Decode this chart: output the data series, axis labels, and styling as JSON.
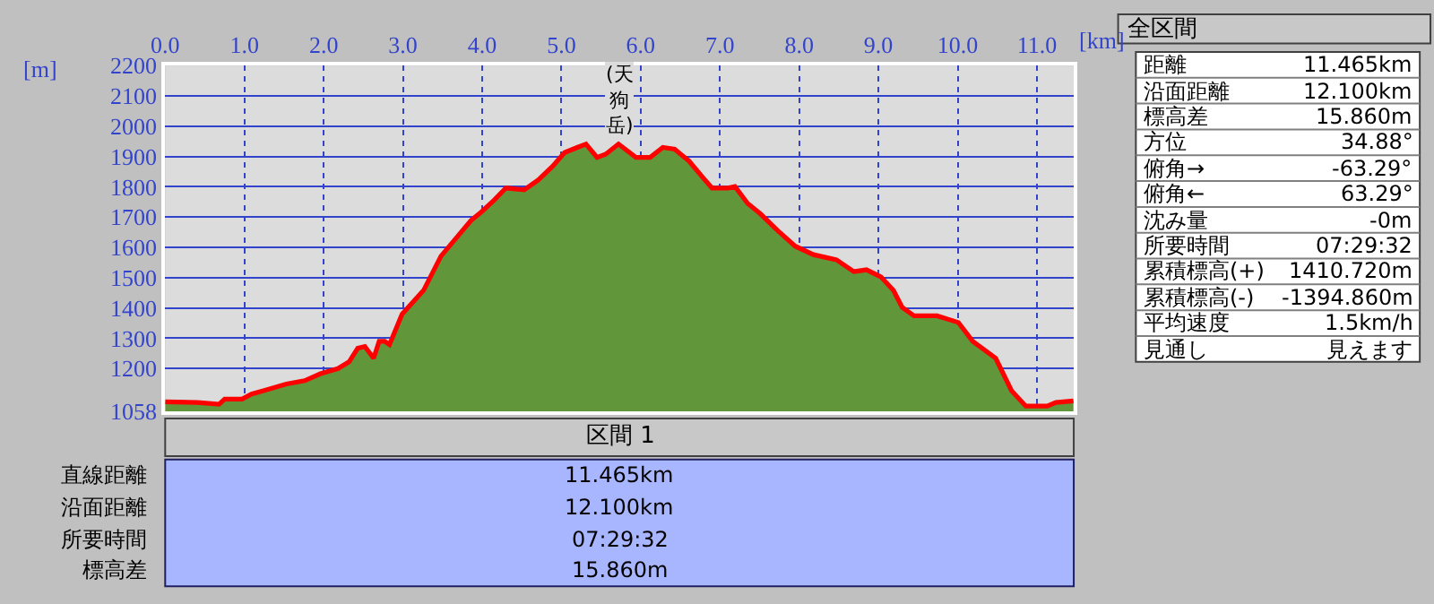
{
  "chart_data": [
    {
      "type": "area",
      "xlabel": "[km]",
      "ylabel": "[m]",
      "x": [
        0,
        0.41,
        0.68,
        0.75,
        0.97,
        1.09,
        1.24,
        1.53,
        1.76,
        1.96,
        2.18,
        2.32,
        2.43,
        2.52,
        2.63,
        2.7,
        2.77,
        2.83,
        2.99,
        3.26,
        3.48,
        3.66,
        3.86,
        3.99,
        4.15,
        4.3,
        4.53,
        4.71,
        4.89,
        5.04,
        5.2,
        5.31,
        5.45,
        5.56,
        5.72,
        5.94,
        6.12,
        6.28,
        6.43,
        6.61,
        6.79,
        6.9,
        7.1,
        7.19,
        7.35,
        7.51,
        7.73,
        7.95,
        8.18,
        8.47,
        8.69,
        8.85,
        9.03,
        9.19,
        9.3,
        9.45,
        9.74,
        10.01,
        10.19,
        10.48,
        10.68,
        10.86,
        11.13,
        11.24,
        11.46
      ],
      "series": [
        {
          "type": "area",
          "color": "#62963a",
          "values": [
            1090,
            1088,
            1082,
            1099,
            1099,
            1116,
            1127,
            1149,
            1160,
            1183,
            1200,
            1222,
            1267,
            1273,
            1234,
            1290,
            1290,
            1279,
            1380,
            1458,
            1571,
            1627,
            1689,
            1717,
            1756,
            1796,
            1790,
            1823,
            1868,
            1913,
            1930,
            1941,
            1897,
            1908,
            1941,
            1897,
            1897,
            1930,
            1924,
            1885,
            1829,
            1796,
            1796,
            1801,
            1745,
            1711,
            1655,
            1604,
            1576,
            1559,
            1520,
            1526,
            1503,
            1458,
            1402,
            1374,
            1374,
            1352,
            1290,
            1234,
            1127,
            1076,
            1076,
            1088,
            1093
          ]
        },
        {
          "type": "line",
          "color": "#ff0000",
          "values": [
            1090,
            1088,
            1082,
            1099,
            1099,
            1116,
            1127,
            1149,
            1160,
            1183,
            1200,
            1222,
            1267,
            1273,
            1234,
            1290,
            1290,
            1279,
            1380,
            1458,
            1571,
            1627,
            1689,
            1717,
            1756,
            1796,
            1790,
            1823,
            1868,
            1913,
            1930,
            1941,
            1897,
            1908,
            1941,
            1897,
            1897,
            1930,
            1924,
            1885,
            1829,
            1796,
            1796,
            1801,
            1745,
            1711,
            1655,
            1604,
            1576,
            1559,
            1520,
            1526,
            1503,
            1458,
            1402,
            1374,
            1374,
            1352,
            1290,
            1234,
            1127,
            1076,
            1076,
            1088,
            1093
          ]
        }
      ],
      "xlim": [
        0,
        11.465
      ],
      "ylim": [
        1058,
        2200
      ],
      "xticks": [
        {
          "value": 0,
          "label": "0.0"
        },
        {
          "value": 1,
          "label": "1.0"
        },
        {
          "value": 2,
          "label": "2.0"
        },
        {
          "value": 3,
          "label": "3.0"
        },
        {
          "value": 4,
          "label": "4.0"
        },
        {
          "value": 5,
          "label": "5.0"
        },
        {
          "value": 6,
          "label": "6.0"
        },
        {
          "value": 7,
          "label": "7.0"
        },
        {
          "value": 8,
          "label": "8.0"
        },
        {
          "value": 9,
          "label": "9.0"
        },
        {
          "value": 10,
          "label": "10.0"
        },
        {
          "value": 11,
          "label": "11.0"
        }
      ],
      "yticks": [
        1058,
        1200,
        1300,
        1400,
        1500,
        1600,
        1700,
        1800,
        1900,
        2000,
        2100,
        2200
      ],
      "grid": true,
      "annotations": [
        {
          "text": "(天狗岳)",
          "x": 5.72,
          "y": 1941
        }
      ]
    },
    {
      "type": "other",
      "title": "全区間",
      "categories": [
        "距離",
        "沿面距離",
        "標高差",
        "方位",
        "俯角→",
        "俯角←",
        "沈み量",
        "所要時間",
        "累積標高(+)",
        "累積標高(-)",
        "平均速度",
        "見通し"
      ],
      "value_labels": [
        "11.465km",
        "12.100km",
        "15.860m",
        "34.88°",
        "-63.29°",
        "63.29°",
        "-0m",
        "07:29:32",
        "1410.720m",
        "-1394.860m",
        "1.5km/h",
        "見えます"
      ]
    },
    {
      "type": "other",
      "title": "区間 1",
      "categories": [
        "直線距離",
        "沿面距離",
        "所要時間",
        "標高差"
      ],
      "value_labels": [
        "11.465km",
        "12.100km",
        "07:29:32",
        "15.860m"
      ]
    }
  ]
}
